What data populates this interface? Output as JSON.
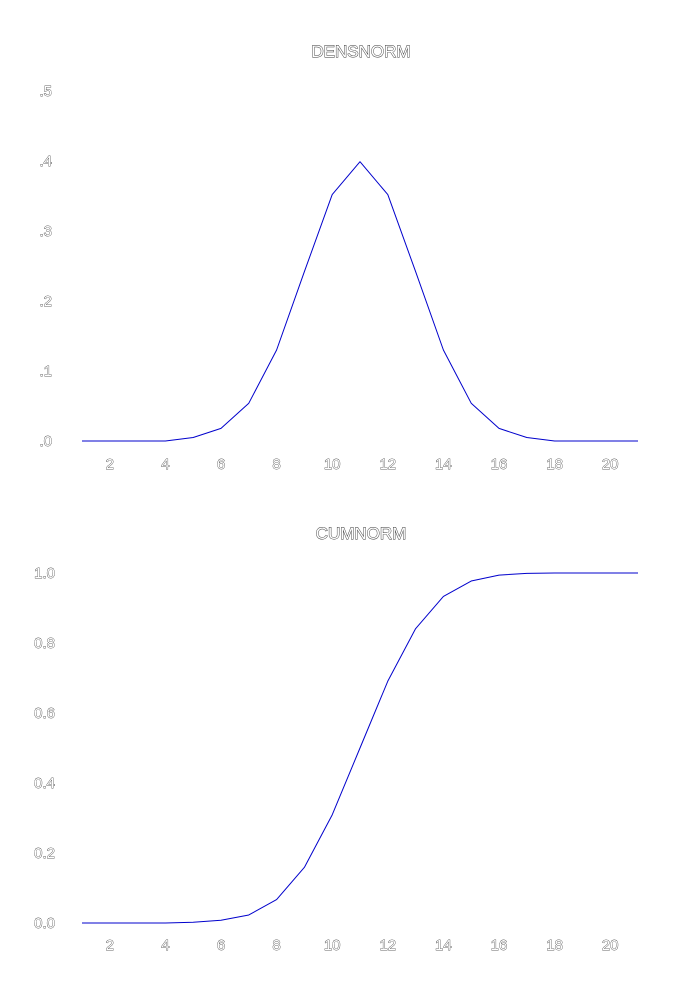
{
  "colors": {
    "line": "#0000cc",
    "background": "#ffffff",
    "text": "#333333"
  },
  "chart_data": [
    {
      "type": "line",
      "title": "DENSNORM",
      "xlabel": "",
      "ylabel": "",
      "xlim": [
        1,
        21
      ],
      "ylim": [
        0,
        0.5
      ],
      "grid": false,
      "x_ticks": [
        2,
        4,
        6,
        8,
        10,
        12,
        14,
        16,
        18,
        20
      ],
      "y_ticks": [
        0.0,
        0.1,
        0.2,
        0.3,
        0.4,
        0.5
      ],
      "y_tick_labels": [
        ".0",
        ".1",
        ".2",
        ".3",
        ".4",
        ".5"
      ],
      "series": [
        {
          "x": [
            1,
            2,
            3,
            4,
            5,
            6,
            7,
            8,
            9,
            10,
            11,
            12,
            13,
            14,
            15,
            16,
            17,
            18,
            19,
            20,
            21
          ],
          "values": [
            0.0,
            0.0,
            0.0,
            0.0,
            0.005,
            0.018,
            0.054,
            0.13,
            0.242,
            0.352,
            0.399,
            0.352,
            0.242,
            0.13,
            0.054,
            0.018,
            0.005,
            0.0,
            0.0,
            0.0,
            0.0
          ]
        }
      ]
    },
    {
      "type": "line",
      "title": "CUMNORM",
      "xlabel": "",
      "ylabel": "",
      "xlim": [
        1,
        21
      ],
      "ylim": [
        0,
        1
      ],
      "grid": false,
      "x_ticks": [
        2,
        4,
        6,
        8,
        10,
        12,
        14,
        16,
        18,
        20
      ],
      "y_ticks": [
        0.0,
        0.2,
        0.4,
        0.6,
        0.8,
        1.0
      ],
      "y_tick_labels": [
        "0.0",
        "0.2",
        "0.4",
        "0.6",
        "0.8",
        "1.0"
      ],
      "series": [
        {
          "x": [
            1,
            2,
            3,
            4,
            5,
            6,
            7,
            8,
            9,
            10,
            11,
            12,
            13,
            14,
            15,
            16,
            17,
            18,
            19,
            20,
            21
          ],
          "values": [
            0.0,
            0.0,
            0.0,
            0.0,
            0.002,
            0.008,
            0.023,
            0.067,
            0.159,
            0.309,
            0.5,
            0.691,
            0.841,
            0.933,
            0.977,
            0.994,
            0.999,
            1.0,
            1.0,
            1.0,
            1.0
          ]
        }
      ]
    }
  ]
}
